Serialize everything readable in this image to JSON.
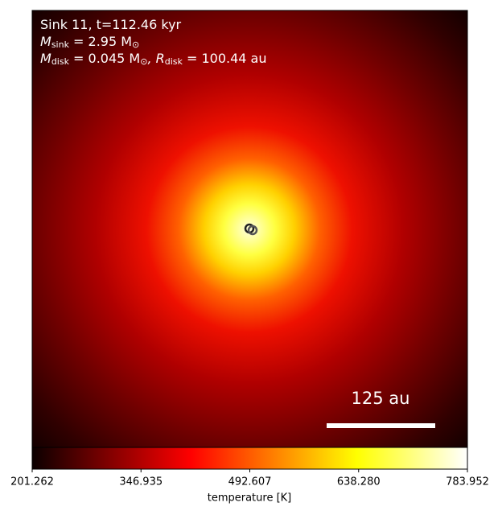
{
  "chart_data": {
    "type": "heatmap",
    "colormap": "hot",
    "annotations": [
      {
        "text": "Sink 11, t=112.46 kyr"
      },
      {
        "symbol": "M",
        "sub": "sink",
        "text": " = 2.95 M",
        "unit_sub": "⊙"
      },
      {
        "symbol": "M",
        "sub": "disk",
        "text": " = 0.045 M",
        "unit_sub": "⊙",
        "symbol2": ", R",
        "sub2": "disk",
        "text2": " = 100.44 au"
      }
    ],
    "scale_bar_label": "125 au",
    "colorbar_label": "temperature [K]",
    "clim": [
      201.262,
      783.952
    ],
    "cticks": [
      201.262,
      346.935,
      492.607,
      {
        "value": 638.28,
        "label": "638.280"
      },
      783.952
    ]
  }
}
